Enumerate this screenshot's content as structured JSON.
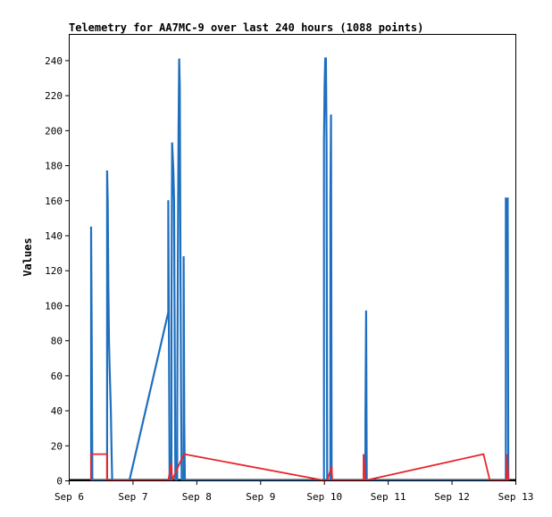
{
  "chart_data": {
    "type": "line",
    "title": "Telemetry for AA7MC-9 over last 240 hours (1088 points)",
    "ylabel": "Values",
    "xlabel": "",
    "x_tick_labels": [
      "Sep 6",
      "Sep 7",
      "Sep 8",
      "Sep 9",
      "Sep 10",
      "Sep 11",
      "Sep 12",
      "Sep 13"
    ],
    "x_ticks_days": [
      6,
      7,
      8,
      9,
      10,
      11,
      12,
      13
    ],
    "xlim_days": [
      6,
      13
    ],
    "y_ticks": [
      0,
      20,
      40,
      60,
      80,
      100,
      120,
      140,
      160,
      180,
      200,
      220,
      240
    ],
    "ylim": [
      0,
      255
    ],
    "grid": false,
    "legend": "none",
    "series": [
      {
        "color": "#1f6fbf",
        "points": [
          [
            6.35,
            0
          ],
          [
            6.35,
            145
          ],
          [
            6.36,
            80
          ],
          [
            6.37,
            0
          ],
          [
            6.6,
            0
          ],
          [
            6.6,
            177
          ],
          [
            6.61,
            160
          ],
          [
            6.62,
            112
          ],
          [
            6.63,
            80
          ],
          [
            6.64,
            65
          ],
          [
            6.66,
            40
          ],
          [
            6.67,
            17
          ],
          [
            6.68,
            0
          ],
          [
            6.95,
            0
          ],
          [
            7.56,
            96
          ],
          [
            7.56,
            160
          ],
          [
            7.58,
            0
          ],
          [
            7.61,
            0
          ],
          [
            7.61,
            97
          ],
          [
            7.62,
            193
          ],
          [
            7.64,
            177
          ],
          [
            7.65,
            160
          ],
          [
            7.67,
            0
          ],
          [
            7.7,
            0
          ],
          [
            7.7,
            40
          ],
          [
            7.71,
            121
          ],
          [
            7.72,
            200
          ],
          [
            7.73,
            241
          ],
          [
            7.74,
            225
          ],
          [
            7.75,
            130
          ],
          [
            7.76,
            50
          ],
          [
            7.77,
            0
          ],
          [
            7.8,
            0
          ],
          [
            7.8,
            128
          ],
          [
            7.81,
            33
          ],
          [
            7.82,
            0
          ],
          [
            10.0,
            0
          ],
          [
            10.0,
            193
          ],
          [
            10.01,
            225
          ],
          [
            10.02,
            241
          ],
          [
            10.03,
            241
          ],
          [
            10.04,
            193
          ],
          [
            10.05,
            0
          ],
          [
            10.1,
            0
          ],
          [
            10.1,
            160
          ],
          [
            10.11,
            209
          ],
          [
            10.12,
            0
          ],
          [
            10.65,
            0
          ],
          [
            10.65,
            33
          ],
          [
            10.66,
            97
          ],
          [
            10.67,
            0
          ],
          [
            12.85,
            0
          ],
          [
            12.85,
            161
          ],
          [
            12.88,
            161
          ],
          [
            12.89,
            0
          ]
        ]
      },
      {
        "color": "#e8262b",
        "points": [
          [
            6.35,
            0
          ],
          [
            6.35,
            15
          ],
          [
            6.6,
            15
          ],
          [
            6.6,
            0
          ],
          [
            7.56,
            0
          ],
          [
            7.61,
            10
          ],
          [
            7.62,
            0
          ],
          [
            7.79,
            14
          ],
          [
            7.81,
            15
          ],
          [
            10.0,
            0
          ],
          [
            10.05,
            0
          ],
          [
            10.12,
            8
          ],
          [
            10.13,
            0
          ],
          [
            10.62,
            0
          ],
          [
            10.62,
            15
          ],
          [
            10.65,
            0
          ],
          [
            12.5,
            15
          ],
          [
            12.6,
            0
          ],
          [
            12.86,
            0
          ],
          [
            12.87,
            15
          ],
          [
            12.89,
            0
          ]
        ]
      }
    ]
  }
}
